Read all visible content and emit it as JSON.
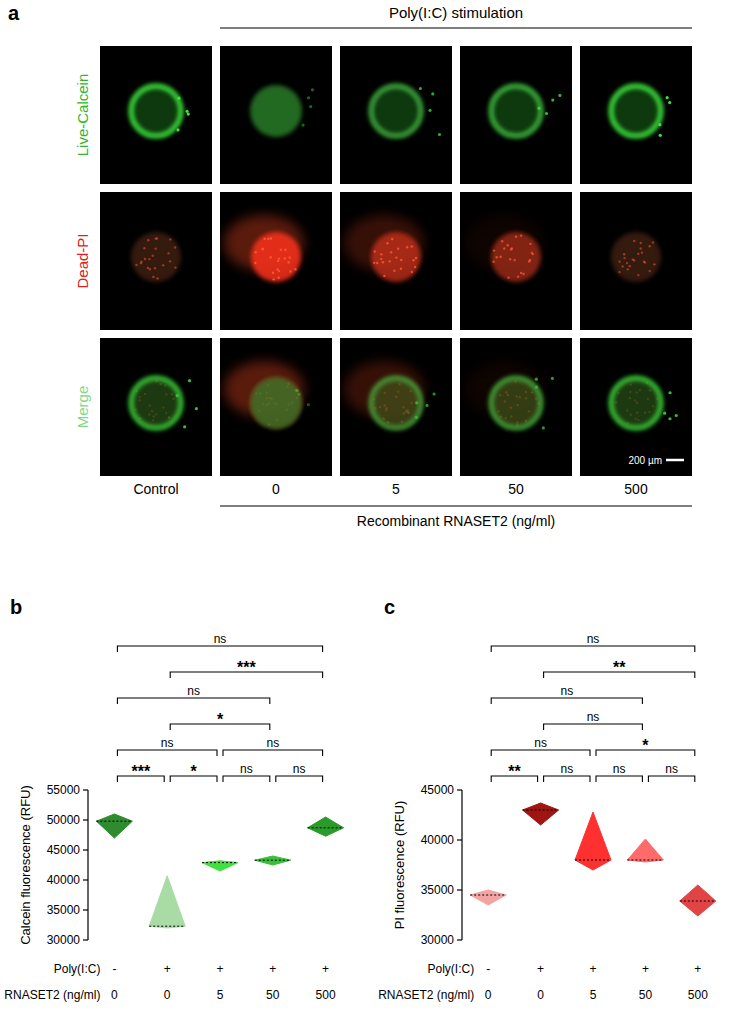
{
  "image_panel": {
    "letter": "a",
    "header": "Poly(I:C) stimulation",
    "rows": [
      "Live-Calcein",
      "Dead-PI",
      "Merge"
    ],
    "columns": [
      "Control",
      "0",
      "5",
      "50",
      "500"
    ],
    "footer": "Recombinant  RNASET2 (ng/ml)",
    "scale_bar": "200 µm"
  },
  "chart_data": [
    {
      "type": "violin",
      "panel_label": "b",
      "y_label": "Calcein fluorescence (RFU)",
      "x_rows": [
        {
          "label": "Poly(I:C)",
          "values": [
            "-",
            "+",
            "+",
            "+",
            "+"
          ]
        },
        {
          "label": "RNASET2 (ng/ml)",
          "values": [
            "0",
            "0",
            "5",
            "50",
            "500"
          ]
        }
      ],
      "values": [
        49800,
        32300,
        42900,
        43300,
        48700
      ],
      "low": [
        47000,
        32000,
        41500,
        42500,
        47300
      ],
      "high": [
        51000,
        40700,
        43200,
        44000,
        50500
      ],
      "colors": [
        "#2e8b2e",
        "#a8dca4",
        "#3fe03f",
        "#39bf39",
        "#2a9a2a"
      ],
      "ylim": [
        30000,
        55000
      ],
      "yticks": [
        30000,
        35000,
        40000,
        45000,
        50000,
        55000
      ],
      "comparisons": [
        {
          "from": 0,
          "to": 1,
          "label": "***"
        },
        {
          "from": 1,
          "to": 2,
          "label": "*"
        },
        {
          "from": 2,
          "to": 3,
          "label": "ns"
        },
        {
          "from": 3,
          "to": 4,
          "label": "ns"
        },
        {
          "from": 0,
          "to": 2,
          "label": "ns"
        },
        {
          "from": 2,
          "to": 4,
          "label": "ns"
        },
        {
          "from": 1,
          "to": 3,
          "label": "*"
        },
        {
          "from": 0,
          "to": 3,
          "label": "ns"
        },
        {
          "from": 1,
          "to": 4,
          "label": "***"
        },
        {
          "from": 0,
          "to": 4,
          "label": "ns"
        }
      ]
    },
    {
      "type": "violin",
      "panel_label": "c",
      "y_label": "PI fluorescence (RFU)",
      "x_rows": [
        {
          "label": "Poly(I:C)",
          "values": [
            "-",
            "+",
            "+",
            "+",
            "+"
          ]
        },
        {
          "label": "RNASET2 (ng/ml)",
          "values": [
            "0",
            "0",
            "5",
            "50",
            "500"
          ]
        }
      ],
      "values": [
        34500,
        43000,
        38000,
        38000,
        33900
      ],
      "low": [
        33500,
        41500,
        37000,
        37800,
        32400
      ],
      "high": [
        35000,
        43700,
        42800,
        40100,
        35500
      ],
      "colors": [
        "#f4a3a3",
        "#a01414",
        "#ff3030",
        "#ff6b6b",
        "#e04444"
      ],
      "ylim": [
        30000,
        45000
      ],
      "yticks": [
        30000,
        35000,
        40000,
        45000
      ],
      "comparisons": [
        {
          "from": 0,
          "to": 1,
          "label": "**"
        },
        {
          "from": 1,
          "to": 2,
          "label": "ns"
        },
        {
          "from": 2,
          "to": 3,
          "label": "ns"
        },
        {
          "from": 3,
          "to": 4,
          "label": "ns"
        },
        {
          "from": 0,
          "to": 2,
          "label": "ns"
        },
        {
          "from": 2,
          "to": 4,
          "label": "*"
        },
        {
          "from": 1,
          "to": 3,
          "label": "ns"
        },
        {
          "from": 0,
          "to": 3,
          "label": "ns"
        },
        {
          "from": 1,
          "to": 4,
          "label": "**"
        },
        {
          "from": 0,
          "to": 4,
          "label": "ns"
        }
      ]
    }
  ]
}
